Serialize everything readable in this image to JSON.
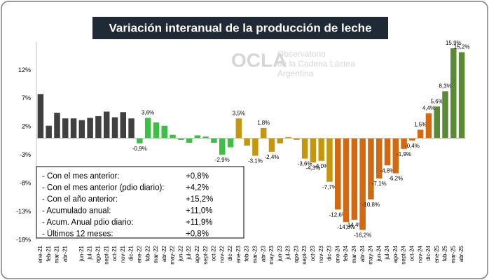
{
  "chart_data": {
    "type": "bar",
    "title": "Variación interanual de la producción de leche",
    "watermark": {
      "logo": "OCLA",
      "line1": "Observatorio",
      "line2": "de la Cadena Láctea",
      "line3": "Argentina"
    },
    "categories": [
      "ene-21",
      "feb-21",
      "mar-21",
      "abr-21",
      null,
      "jun-21",
      "jul-21",
      "ago-21",
      "sept-21",
      "oct-21",
      "nov-21",
      "dic-21",
      "ene-22",
      "feb-22",
      "mar-22",
      "abr-22",
      "may-22",
      "jun-22",
      "jul-22",
      "ago-22",
      "sept-22",
      "oct-22",
      "nov-22",
      "dic-22",
      "ene-23",
      "feb-23",
      "mar-23",
      "abr-23",
      "may-23",
      "jun-23",
      "jul-23",
      "ago-23",
      "sept-23",
      "oct-23",
      "nov-23",
      "dic-23",
      "ene-24",
      "feb-24",
      "mar-24",
      "abr-24",
      "may-24",
      "jun-24",
      "jul-24",
      "ago-24",
      "sept-24",
      "oct-24",
      "nov-24",
      "dic-24",
      "ene-25",
      "feb-25",
      "mar-25",
      "abr-25"
    ],
    "values": [
      7.8,
      2.2,
      4.5,
      3.5,
      3.5,
      3.2,
      3.6,
      3.9,
      4.7,
      3.7,
      4.6,
      3.5,
      -0.9,
      3.6,
      2.8,
      2.2,
      0.6,
      -0.3,
      -0.8,
      0.5,
      0.3,
      -0.8,
      -2.9,
      -1.6,
      3.5,
      -1.3,
      -3.1,
      1.8,
      -2.4,
      -0.9,
      0.2,
      -0.3,
      -3.6,
      -4.3,
      -4.0,
      -7.7,
      -12.6,
      -14.8,
      -14.4,
      -16.2,
      -10.8,
      -7.1,
      -4.8,
      -6.2,
      -1.9,
      -0.4,
      1.5,
      4.4,
      5.6,
      8.3,
      15.9,
      15.2
    ],
    "value_labels": [
      null,
      null,
      null,
      null,
      null,
      null,
      null,
      null,
      null,
      null,
      null,
      null,
      "-0,9%",
      "3,6%",
      null,
      null,
      null,
      null,
      null,
      null,
      null,
      null,
      "-2,9%",
      null,
      "3,5%",
      null,
      "-3,1%",
      "1,8%",
      "-2,4%",
      null,
      null,
      null,
      "-3,6%",
      "-4,3%",
      "-4,0%",
      "-7,7%",
      "-12,6%",
      "-14,8%",
      "-14,4%",
      "-16,2%",
      "-10,8%",
      "-7,1%",
      "-4,8%",
      "-6,2%",
      "-1,9%",
      "-0,4%",
      "1,5%",
      "4,4%",
      "5,6%",
      "8,3%",
      "15,9%",
      "15,2%"
    ],
    "colors": [
      "#404040",
      "#404040",
      "#404040",
      "#404040",
      "#404040",
      "#404040",
      "#404040",
      "#404040",
      "#404040",
      "#404040",
      "#404040",
      "#404040",
      "#3dbf45",
      "#3dbf45",
      "#3dbf45",
      "#3dbf45",
      "#3dbf45",
      "#3dbf45",
      "#3dbf45",
      "#3dbf45",
      "#3dbf45",
      "#3dbf45",
      "#3dbf45",
      "#3dbf45",
      "#c4970e",
      "#c4970e",
      "#c4970e",
      "#c4970e",
      "#c4970e",
      "#c4970e",
      "#c4970e",
      "#c4970e",
      "#c4970e",
      "#c4970e",
      "#c4970e",
      "#c4970e",
      "#d2680f",
      "#d2680f",
      "#d2680f",
      "#d2680f",
      "#d2680f",
      "#d2680f",
      "#d2680f",
      "#d2680f",
      "#d2680f",
      "#d2680f",
      "#d2680f",
      "#d2680f",
      "#5b8a35",
      "#5b8a35",
      "#5b8a35",
      "#5b8a35"
    ],
    "ylim": [
      -18,
      17
    ],
    "yticks": [
      {
        "value": 12,
        "label": "12%"
      },
      {
        "value": 7,
        "label": "7%"
      },
      {
        "value": 2,
        "label": "2%"
      },
      {
        "value": -3,
        "label": "-3%"
      },
      {
        "value": -8,
        "label": "-8%"
      },
      {
        "value": -13,
        "label": "-13%"
      },
      {
        "value": -18,
        "label": "-18%"
      }
    ],
    "grid": false,
    "summary": [
      {
        "label": "- Con el mes anterior:",
        "value": "+0,8%"
      },
      {
        "label": "- Con el mes anterior (pdio diario):",
        "value": "+4,2%"
      },
      {
        "label": "- Con el año anterior:",
        "value": "+15,2%"
      },
      {
        "label": "- Acumulado anual:",
        "value": "+11,0%"
      },
      {
        "label": "- Acum. Anual pdio diario:",
        "value": "+11,9%"
      },
      {
        "label": "- Últimos 12 meses:",
        "value": "+0,8%"
      }
    ]
  }
}
